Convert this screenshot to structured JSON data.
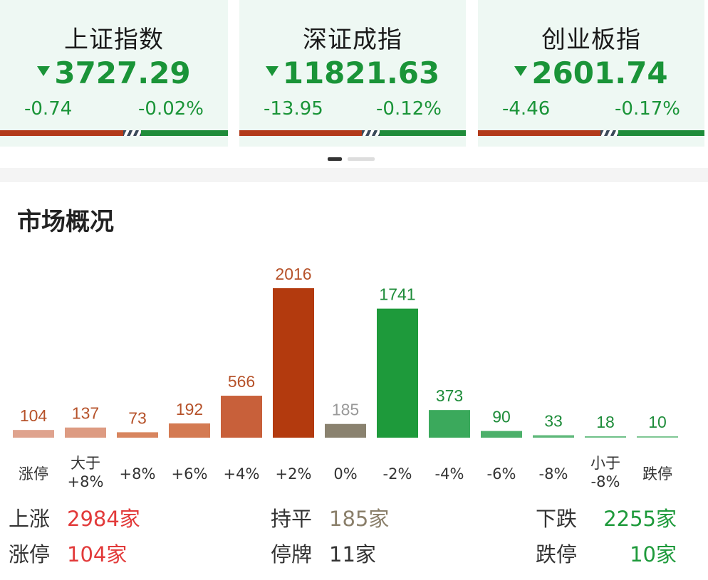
{
  "indices": [
    {
      "name": "上证指数",
      "value": "3727.29",
      "change": "-0.74",
      "percent": "-0.02%"
    },
    {
      "name": "深证成指",
      "value": "11821.63",
      "change": "-13.95",
      "percent": "-0.12%"
    },
    {
      "name": "创业板指",
      "value": "2601.74",
      "change": "-4.46",
      "percent": "-0.17%"
    }
  ],
  "section": {
    "title": "市场概况"
  },
  "chart_data": {
    "type": "bar",
    "categories": [
      "涨停",
      "大于\n+8%",
      "+8%",
      "+6%",
      "+4%",
      "+2%",
      "0%",
      "-2%",
      "-4%",
      "-6%",
      "-8%",
      "小于\n-8%",
      "跌停"
    ],
    "values": [
      104,
      137,
      73,
      192,
      566,
      2016,
      185,
      1741,
      373,
      90,
      33,
      18,
      10
    ],
    "colors": [
      "#dfa38e",
      "#dd9b82",
      "#d8855f",
      "#d47a52",
      "#c8603a",
      "#b33a0e",
      "#8a826f",
      "#1e9a3b",
      "#3ba95c",
      "#4cb06a",
      "#5eb87a",
      "#6fc188",
      "#7fc794"
    ],
    "label_colors": [
      "#b6522a",
      "#b6522a",
      "#b6522a",
      "#b6522a",
      "#b6522a",
      "#b6522a",
      "#999999",
      "#1e8c3a",
      "#1e8c3a",
      "#1e8c3a",
      "#1e8c3a",
      "#1e8c3a",
      "#1e8c3a"
    ]
  },
  "summary": {
    "up_label": "上涨",
    "up_value": "2984家",
    "flat_label": "持平",
    "flat_value": "185家",
    "down_label": "下跌",
    "down_value": "2255家",
    "limit_up_label": "涨停",
    "limit_up_value": "104家",
    "suspended_label": "停牌",
    "suspended_value": "11家",
    "limit_down_label": "跌停",
    "limit_down_value": "10家"
  },
  "colors": {
    "up": "#e23a3a",
    "down": "#1e9a3b",
    "flat": "#8a7f6a",
    "accent_green": "#1a9438"
  }
}
